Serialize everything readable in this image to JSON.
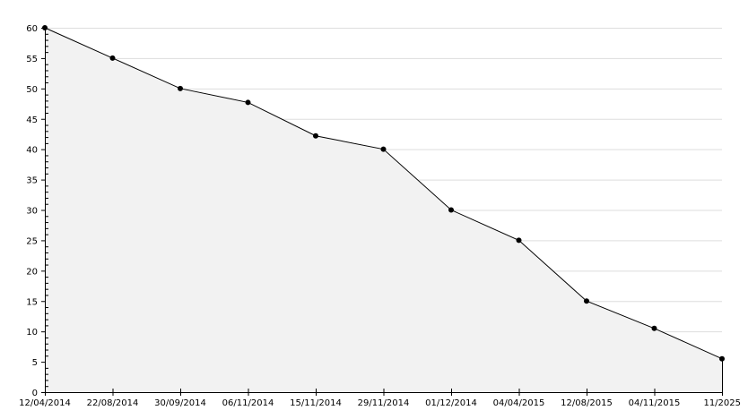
{
  "chart_data": {
    "type": "area",
    "title": "",
    "xlabel": "",
    "ylabel": "",
    "categories": [
      "12/04/2014",
      "22/08/2014",
      "30/09/2014",
      "06/11/2014",
      "15/11/2014",
      "29/11/2014",
      "01/12/2014",
      "04/04/2015",
      "12/08/2015",
      "04/11/2015",
      "11/2025"
    ],
    "values": [
      60,
      55,
      50,
      47.7,
      42.2,
      40,
      30,
      25,
      15,
      10.5,
      5.5
    ],
    "ylim": [
      0,
      60
    ],
    "yticks": [
      0,
      5,
      10,
      15,
      20,
      25,
      30,
      35,
      40,
      45,
      50,
      55,
      60
    ],
    "grid": true,
    "colors": {
      "line": "#000000",
      "fill": "#f2f2f2",
      "grid": "#dddddd",
      "marker": "#000000"
    }
  }
}
